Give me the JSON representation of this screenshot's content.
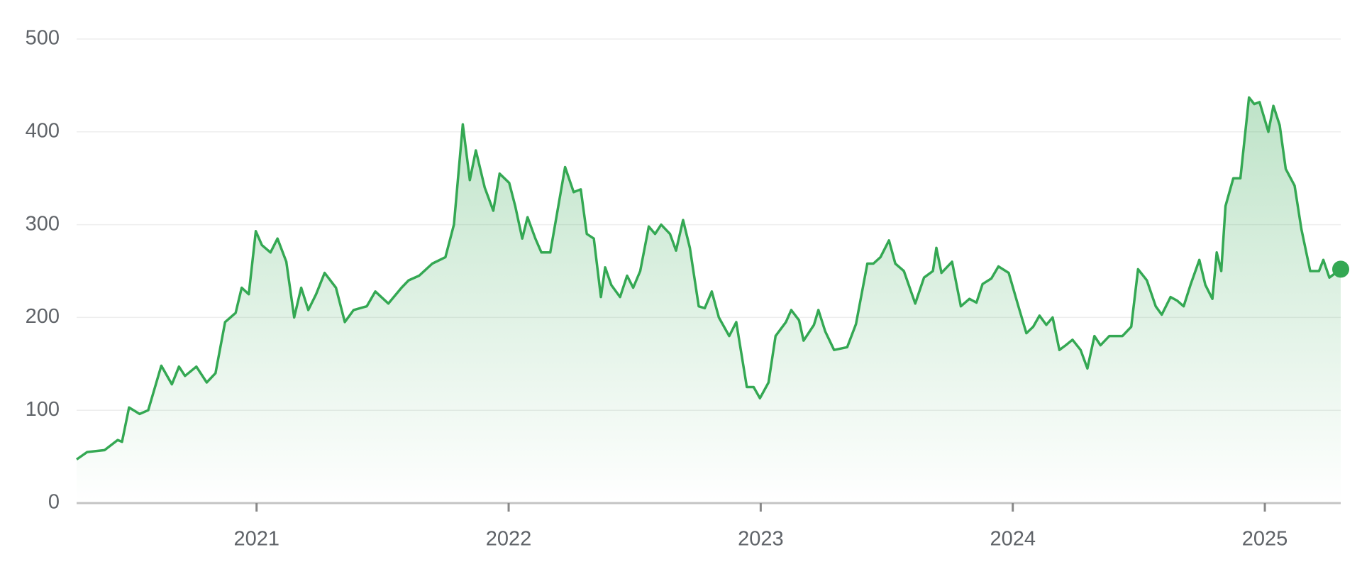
{
  "chart_data": {
    "type": "line",
    "color": "#34a853",
    "grid": true,
    "xlim": [
      2020.286,
      2025.301
    ],
    "xticks": [
      2021,
      2022,
      2023,
      2024,
      2025
    ],
    "ylim": [
      0,
      500
    ],
    "yticks": [
      0,
      100,
      200,
      300,
      400,
      500
    ],
    "x": [
      2020.286,
      2020.328,
      2020.397,
      2020.449,
      2020.466,
      2020.494,
      2020.536,
      2020.57,
      2020.622,
      2020.664,
      2020.692,
      2020.716,
      2020.761,
      2020.802,
      2020.837,
      2020.875,
      2020.917,
      2020.941,
      2020.969,
      2020.997,
      2021.021,
      2021.055,
      2021.083,
      2021.118,
      2021.149,
      2021.177,
      2021.205,
      2021.236,
      2021.27,
      2021.315,
      2021.35,
      2021.385,
      2021.437,
      2021.471,
      2021.523,
      2021.575,
      2021.603,
      2021.645,
      2021.697,
      2021.749,
      2021.783,
      2021.818,
      2021.846,
      2021.87,
      2021.905,
      2021.939,
      2021.964,
      2022.002,
      2022.026,
      2022.054,
      2022.075,
      2022.106,
      2022.13,
      2022.165,
      2022.224,
      2022.258,
      2022.286,
      2022.31,
      2022.338,
      2022.366,
      2022.383,
      2022.407,
      2022.442,
      2022.47,
      2022.494,
      2022.522,
      2022.556,
      2022.581,
      2022.605,
      2022.64,
      2022.664,
      2022.692,
      2022.719,
      2022.754,
      2022.778,
      2022.806,
      2022.834,
      2022.875,
      2022.903,
      2022.945,
      2022.972,
      2022.997,
      2023.031,
      2023.059,
      2023.1,
      2023.121,
      2023.152,
      2023.17,
      2023.211,
      2023.229,
      2023.256,
      2023.291,
      2023.343,
      2023.378,
      2023.423,
      2023.447,
      2023.475,
      2023.509,
      2023.534,
      2023.568,
      2023.613,
      2023.648,
      2023.683,
      2023.697,
      2023.717,
      2023.759,
      2023.794,
      2023.828,
      2023.856,
      2023.88,
      2023.915,
      2023.943,
      2023.984,
      2024.019,
      2024.054,
      2024.081,
      2024.106,
      2024.133,
      2024.158,
      2024.185,
      2024.21,
      2024.237,
      2024.269,
      2024.296,
      2024.324,
      2024.348,
      2024.383,
      2024.435,
      2024.47,
      2024.497,
      2024.532,
      2024.567,
      2024.591,
      2024.626,
      2024.653,
      2024.678,
      2024.705,
      2024.74,
      2024.764,
      2024.792,
      2024.809,
      2024.827,
      2024.844,
      2024.875,
      2024.903,
      2024.937,
      2024.958,
      2024.979,
      2025.014,
      2025.034,
      2025.059,
      2025.083,
      2025.118,
      2025.145,
      2025.18,
      2025.215,
      2025.232,
      2025.256,
      2025.301
    ],
    "values": [
      47,
      55,
      57,
      68,
      66,
      103,
      96,
      100,
      148,
      128,
      147,
      137,
      147,
      130,
      140,
      195,
      205,
      232,
      225,
      293,
      278,
      270,
      285,
      260,
      200,
      232,
      208,
      225,
      248,
      232,
      195,
      208,
      212,
      228,
      215,
      232,
      240,
      245,
      258,
      265,
      300,
      408,
      348,
      380,
      340,
      315,
      355,
      345,
      320,
      285,
      308,
      285,
      270,
      270,
      362,
      335,
      338,
      290,
      285,
      222,
      254,
      235,
      222,
      245,
      232,
      250,
      298,
      290,
      300,
      290,
      272,
      305,
      275,
      212,
      210,
      228,
      200,
      180,
      195,
      125,
      125,
      113,
      130,
      180,
      195,
      208,
      197,
      175,
      192,
      208,
      185,
      165,
      168,
      193,
      258,
      258,
      265,
      283,
      258,
      250,
      215,
      243,
      250,
      275,
      248,
      260,
      212,
      220,
      216,
      236,
      242,
      255,
      248,
      215,
      183,
      190,
      202,
      192,
      200,
      165,
      170,
      176,
      165,
      145,
      180,
      170,
      180,
      180,
      190,
      252,
      240,
      212,
      203,
      222,
      218,
      212,
      235,
      262,
      235,
      220,
      270,
      250,
      320,
      350,
      350,
      437,
      430,
      432,
      400,
      428,
      407,
      360,
      342,
      295,
      250,
      250,
      262,
      243,
      252
    ]
  }
}
